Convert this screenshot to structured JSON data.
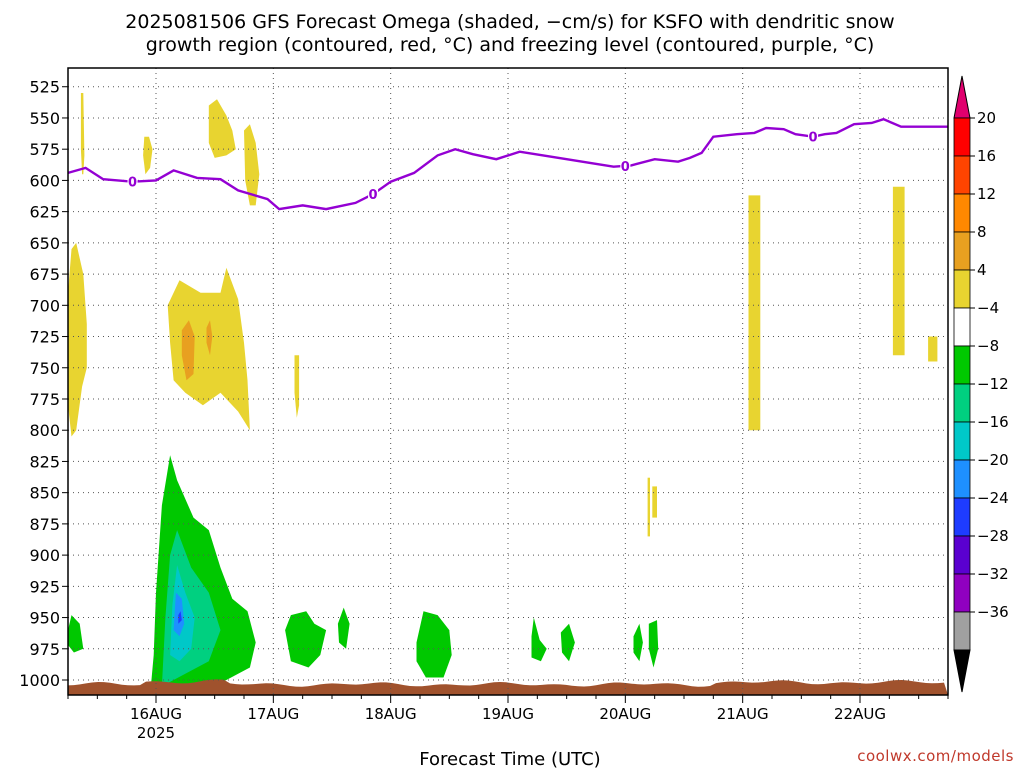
{
  "chart_data": {
    "type": "heatmap",
    "title_lines": [
      "2025081506 GFS Forecast Omega (shaded, −cm/s) for KSFO with dendritic snow",
      "growth region (contoured, red, °C) and freezing level (contoured, purple, °C)"
    ],
    "xlabel": "Forecast Time (UTC)",
    "ylabel": "",
    "credit": "coolwx.com/models",
    "x_ticks": [
      {
        "day": 16,
        "label": "16AUG",
        "sublabel": "2025"
      },
      {
        "day": 17,
        "label": "17AUG",
        "sublabel": ""
      },
      {
        "day": 18,
        "label": "18AUG",
        "sublabel": ""
      },
      {
        "day": 19,
        "label": "19AUG",
        "sublabel": ""
      },
      {
        "day": 20,
        "label": "20AUG",
        "sublabel": ""
      },
      {
        "day": 21,
        "label": "21AUG",
        "sublabel": ""
      },
      {
        "day": 22,
        "label": "22AUG",
        "sublabel": ""
      }
    ],
    "x_range_days": [
      15.25,
      22.75
    ],
    "y_range_hpa": [
      1012,
      510
    ],
    "y_ticks": [
      "525",
      "550",
      "575",
      "600",
      "625",
      "650",
      "675",
      "700",
      "725",
      "750",
      "775",
      "800",
      "825",
      "850",
      "875",
      "900",
      "925",
      "950",
      "975",
      "1000"
    ],
    "grid": true,
    "colorbar": {
      "ticks": [
        "20",
        "16",
        "12",
        "8",
        "4",
        "−4",
        "−8",
        "−12",
        "−16",
        "−20",
        "−24",
        "−28",
        "−32",
        "−36"
      ],
      "colors": [
        "#ff0000",
        "#ff4400",
        "#ff8800",
        "#e8a020",
        "#e8d430",
        "#ffffff",
        "#00c800",
        "#00d080",
        "#00c8c8",
        "#1e90ff",
        "#1e3cff",
        "#5a00d0",
        "#9000c0",
        "#a0a0a0"
      ],
      "top_arrow_color": "#e0006e",
      "bottom_arrow_color": "#000000"
    },
    "freezing_level": {
      "label": "0",
      "color": "#9400d3",
      "points": [
        [
          15.25,
          594
        ],
        [
          15.4,
          590
        ],
        [
          15.55,
          599
        ],
        [
          15.8,
          601
        ],
        [
          16.0,
          600
        ],
        [
          16.15,
          592
        ],
        [
          16.35,
          598
        ],
        [
          16.55,
          599
        ],
        [
          16.7,
          608
        ],
        [
          16.95,
          615
        ],
        [
          17.05,
          623
        ],
        [
          17.25,
          620
        ],
        [
          17.45,
          623
        ],
        [
          17.7,
          618
        ],
        [
          17.85,
          611
        ],
        [
          18.0,
          601
        ],
        [
          18.2,
          594
        ],
        [
          18.4,
          580
        ],
        [
          18.55,
          575
        ],
        [
          18.7,
          579
        ],
        [
          18.9,
          583
        ],
        [
          19.1,
          577
        ],
        [
          19.3,
          580
        ],
        [
          19.5,
          583
        ],
        [
          19.7,
          586
        ],
        [
          19.9,
          589
        ],
        [
          20.05,
          588
        ],
        [
          20.25,
          583
        ],
        [
          20.45,
          585
        ],
        [
          20.55,
          582
        ],
        [
          20.65,
          578
        ],
        [
          20.75,
          565
        ],
        [
          20.95,
          563
        ],
        [
          21.1,
          562
        ],
        [
          21.2,
          558
        ],
        [
          21.35,
          559
        ],
        [
          21.45,
          563
        ],
        [
          21.6,
          565
        ],
        [
          21.7,
          563
        ],
        [
          21.8,
          562
        ],
        [
          21.95,
          555
        ],
        [
          22.1,
          554
        ],
        [
          22.2,
          551
        ],
        [
          22.35,
          557
        ],
        [
          22.5,
          557
        ],
        [
          22.75,
          557
        ]
      ],
      "label_days": [
        15.8,
        17.85,
        20.0,
        21.6
      ]
    },
    "surface_color": "#a0522d",
    "regions": [
      {
        "cls": "+4",
        "pts": [
          [
            15.36,
            530
          ],
          [
            15.38,
            530
          ],
          [
            15.39,
            580
          ],
          [
            15.38,
            595
          ],
          [
            15.37,
            595
          ],
          [
            15.36,
            575
          ]
        ]
      },
      {
        "cls": "+4",
        "pts": [
          [
            15.25,
            690
          ],
          [
            15.28,
            655
          ],
          [
            15.32,
            650
          ],
          [
            15.38,
            675
          ],
          [
            15.41,
            715
          ],
          [
            15.41,
            750
          ],
          [
            15.37,
            765
          ],
          [
            15.32,
            800
          ],
          [
            15.28,
            805
          ],
          [
            15.25,
            780
          ]
        ]
      },
      {
        "cls": "+4",
        "pts": [
          [
            15.9,
            565
          ],
          [
            15.94,
            565
          ],
          [
            15.97,
            575
          ],
          [
            15.95,
            590
          ],
          [
            15.91,
            595
          ],
          [
            15.89,
            580
          ]
        ]
      },
      {
        "cls": "+4",
        "pts": [
          [
            16.45,
            540
          ],
          [
            16.52,
            535
          ],
          [
            16.6,
            548
          ],
          [
            16.65,
            560
          ],
          [
            16.68,
            575
          ],
          [
            16.6,
            580
          ],
          [
            16.5,
            582
          ],
          [
            16.45,
            570
          ]
        ]
      },
      {
        "cls": "+4",
        "pts": [
          [
            16.75,
            560
          ],
          [
            16.8,
            555
          ],
          [
            16.85,
            570
          ],
          [
            16.88,
            595
          ],
          [
            16.85,
            620
          ],
          [
            16.8,
            620
          ],
          [
            16.76,
            600
          ]
        ]
      },
      {
        "cls": "+4",
        "pts": [
          [
            16.1,
            700
          ],
          [
            16.2,
            680
          ],
          [
            16.38,
            690
          ],
          [
            16.55,
            690
          ],
          [
            16.6,
            670
          ],
          [
            16.7,
            695
          ],
          [
            16.75,
            730
          ],
          [
            16.78,
            760
          ],
          [
            16.8,
            800
          ],
          [
            16.7,
            785
          ],
          [
            16.55,
            770
          ],
          [
            16.4,
            780
          ],
          [
            16.25,
            770
          ],
          [
            16.15,
            760
          ],
          [
            16.12,
            730
          ]
        ]
      },
      {
        "cls": "+8",
        "pts": [
          [
            16.22,
            720
          ],
          [
            16.28,
            712
          ],
          [
            16.33,
            725
          ],
          [
            16.32,
            755
          ],
          [
            16.26,
            760
          ],
          [
            16.22,
            740
          ]
        ]
      },
      {
        "cls": "+8",
        "pts": [
          [
            16.43,
            718
          ],
          [
            16.46,
            712
          ],
          [
            16.48,
            725
          ],
          [
            16.46,
            740
          ],
          [
            16.43,
            730
          ]
        ]
      },
      {
        "cls": "+4",
        "pts": [
          [
            17.18,
            740
          ],
          [
            17.22,
            740
          ],
          [
            17.22,
            780
          ],
          [
            17.2,
            790
          ],
          [
            17.18,
            770
          ]
        ]
      },
      {
        "cls": "+4",
        "pts": [
          [
            21.05,
            612
          ],
          [
            21.15,
            612
          ],
          [
            21.15,
            800
          ],
          [
            21.05,
            800
          ]
        ]
      },
      {
        "cls": "+4",
        "pts": [
          [
            22.28,
            605
          ],
          [
            22.38,
            605
          ],
          [
            22.38,
            740
          ],
          [
            22.28,
            740
          ]
        ]
      },
      {
        "cls": "+4",
        "pts": [
          [
            22.58,
            725
          ],
          [
            22.66,
            725
          ],
          [
            22.66,
            745
          ],
          [
            22.58,
            745
          ]
        ]
      },
      {
        "cls": "+4",
        "pts": [
          [
            20.19,
            838
          ],
          [
            20.21,
            838
          ],
          [
            20.21,
            885
          ],
          [
            20.19,
            885
          ]
        ]
      },
      {
        "cls": "+4",
        "pts": [
          [
            20.23,
            845
          ],
          [
            20.27,
            845
          ],
          [
            20.27,
            870
          ],
          [
            20.23,
            870
          ]
        ]
      },
      {
        "cls": "-4",
        "pts": [
          [
            15.95,
            1012
          ],
          [
            15.98,
            980
          ],
          [
            16.0,
            930
          ],
          [
            16.05,
            860
          ],
          [
            16.12,
            820
          ],
          [
            16.18,
            840
          ],
          [
            16.32,
            870
          ],
          [
            16.45,
            880
          ],
          [
            16.55,
            910
          ],
          [
            16.65,
            935
          ],
          [
            16.78,
            945
          ],
          [
            16.85,
            970
          ],
          [
            16.8,
            990
          ],
          [
            16.6,
            1000
          ],
          [
            16.35,
            1008
          ],
          [
            16.15,
            1012
          ]
        ]
      },
      {
        "cls": "-8",
        "pts": [
          [
            16.05,
            1005
          ],
          [
            16.08,
            950
          ],
          [
            16.12,
            900
          ],
          [
            16.18,
            880
          ],
          [
            16.3,
            910
          ],
          [
            16.45,
            930
          ],
          [
            16.55,
            960
          ],
          [
            16.45,
            985
          ],
          [
            16.25,
            995
          ]
        ]
      },
      {
        "cls": "-12",
        "pts": [
          [
            16.12,
            980
          ],
          [
            16.14,
            940
          ],
          [
            16.18,
            908
          ],
          [
            16.25,
            930
          ],
          [
            16.33,
            950
          ],
          [
            16.3,
            975
          ],
          [
            16.2,
            985
          ]
        ]
      },
      {
        "cls": "-16",
        "pts": [
          [
            16.15,
            960
          ],
          [
            16.17,
            930
          ],
          [
            16.22,
            935
          ],
          [
            16.24,
            955
          ],
          [
            16.2,
            965
          ]
        ]
      },
      {
        "cls": "-20",
        "pts": [
          [
            16.19,
            948
          ],
          [
            16.21,
            945
          ],
          [
            16.22,
            952
          ],
          [
            16.19,
            955
          ]
        ]
      },
      {
        "cls": "-4",
        "pts": [
          [
            15.25,
            960
          ],
          [
            15.28,
            948
          ],
          [
            15.35,
            955
          ],
          [
            15.38,
            975
          ],
          [
            15.3,
            978
          ],
          [
            15.25,
            972
          ]
        ]
      },
      {
        "cls": "-4",
        "pts": [
          [
            17.1,
            960
          ],
          [
            17.15,
            948
          ],
          [
            17.28,
            945
          ],
          [
            17.35,
            955
          ],
          [
            17.45,
            960
          ],
          [
            17.4,
            980
          ],
          [
            17.3,
            990
          ],
          [
            17.15,
            985
          ]
        ]
      },
      {
        "cls": "-4",
        "pts": [
          [
            17.55,
            955
          ],
          [
            17.6,
            942
          ],
          [
            17.65,
            955
          ],
          [
            17.62,
            975
          ],
          [
            17.56,
            970
          ]
        ]
      },
      {
        "cls": "-4",
        "pts": [
          [
            18.22,
            970
          ],
          [
            18.28,
            945
          ],
          [
            18.4,
            948
          ],
          [
            18.5,
            960
          ],
          [
            18.52,
            980
          ],
          [
            18.45,
            998
          ],
          [
            18.3,
            998
          ],
          [
            18.22,
            985
          ]
        ]
      },
      {
        "cls": "-4",
        "pts": [
          [
            19.2,
            965
          ],
          [
            19.22,
            950
          ],
          [
            19.27,
            968
          ],
          [
            19.33,
            975
          ],
          [
            19.28,
            985
          ],
          [
            19.2,
            982
          ]
        ]
      },
      {
        "cls": "-4",
        "pts": [
          [
            19.45,
            962
          ],
          [
            19.52,
            955
          ],
          [
            19.57,
            970
          ],
          [
            19.52,
            985
          ],
          [
            19.46,
            978
          ]
        ]
      },
      {
        "cls": "-4",
        "pts": [
          [
            20.07,
            965
          ],
          [
            20.12,
            955
          ],
          [
            20.15,
            970
          ],
          [
            20.12,
            985
          ],
          [
            20.07,
            978
          ]
        ]
      },
      {
        "cls": "-4",
        "pts": [
          [
            20.2,
            955
          ],
          [
            20.27,
            952
          ],
          [
            20.28,
            975
          ],
          [
            20.24,
            990
          ],
          [
            20.2,
            975
          ]
        ]
      }
    ]
  }
}
